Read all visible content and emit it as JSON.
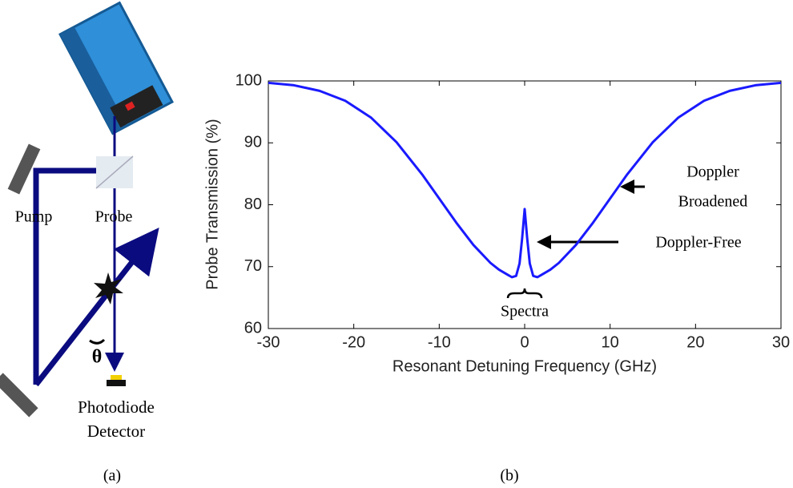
{
  "diagram": {
    "pump": "Pump",
    "probe": "Probe",
    "angle": "θ",
    "detector": [
      "Photodiode",
      "Detector"
    ],
    "caption": "(a)"
  },
  "chart_data": {
    "type": "line",
    "caption": "(b)",
    "x_label": "Resonant Detuning Frequency (GHz)",
    "y_label": "Probe Transmission (%)",
    "x": [
      -30,
      -27,
      -24,
      -21,
      -18,
      -15,
      -12,
      -10,
      -8,
      -6,
      -4,
      -3,
      -2,
      -1.5,
      -1,
      -0.6,
      -0.3,
      0,
      0.3,
      0.6,
      1,
      1.5,
      2,
      3,
      4,
      6,
      8,
      10,
      12,
      15,
      18,
      21,
      24,
      27,
      30
    ],
    "values": [
      99.7,
      99.3,
      98.4,
      96.8,
      94.1,
      90.1,
      84.9,
      81.0,
      77.1,
      73.5,
      70.6,
      69.5,
      68.7,
      68.3,
      68.5,
      70.5,
      74.5,
      79.3,
      74.5,
      70.5,
      68.5,
      68.3,
      68.7,
      69.5,
      70.6,
      73.5,
      77.1,
      81.0,
      84.9,
      90.1,
      94.1,
      96.8,
      98.4,
      99.3,
      99.7
    ],
    "color": "#1a1aff",
    "xlim": [
      -30,
      30
    ],
    "xticks": [
      -30,
      -20,
      -10,
      0,
      10,
      20,
      30
    ],
    "ylim": [
      60,
      100
    ],
    "yticks": [
      60,
      70,
      80,
      90,
      100
    ],
    "annotations": [
      "Doppler",
      "Broadened",
      "Doppler-Free",
      "Spectra"
    ]
  }
}
